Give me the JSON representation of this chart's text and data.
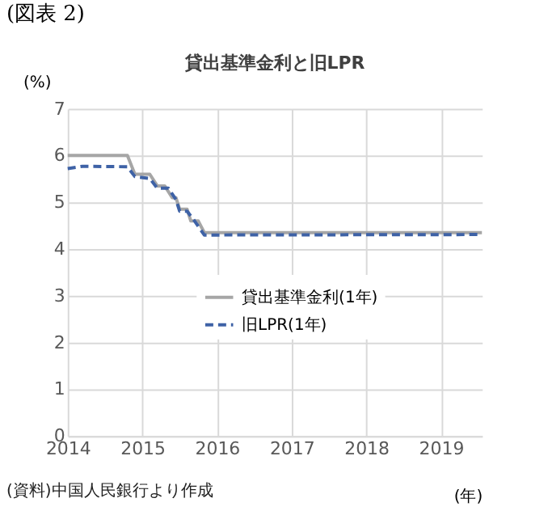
{
  "chart_data": {
    "type": "line",
    "title": "貸出基準金利と旧LPR",
    "subtitle": "(図表 2)",
    "ylabel": "(%)",
    "xlabel": "(年)",
    "annotations": [
      "(資料)中国人民銀行より作成"
    ],
    "xlim": [
      2014,
      2019.55
    ],
    "xticks": [
      2014,
      2015,
      2016,
      2017,
      2018,
      2019
    ],
    "ylim": [
      0,
      7
    ],
    "yticks": [
      0,
      1,
      2,
      3,
      4,
      5,
      6,
      7
    ],
    "grid": true,
    "legend": "bottom right",
    "marker": "none",
    "series": [
      {
        "name": "貸出基準金利(1年)",
        "color": "#a6a6a6",
        "line_style": "solid",
        "x": [
          2014.0,
          2014.8,
          2014.9,
          2015.1,
          2015.2,
          2015.3,
          2015.4,
          2015.45,
          2015.5,
          2015.6,
          2015.65,
          2015.75,
          2015.83,
          2019.55
        ],
        "values": [
          6.0,
          6.0,
          5.6,
          5.6,
          5.35,
          5.35,
          5.1,
          5.1,
          4.85,
          4.85,
          4.6,
          4.6,
          4.35,
          4.35
        ]
      },
      {
        "name": "旧LPR(1年)",
        "color": "#3e62a6",
        "line_style": "dashed",
        "x": [
          2014.0,
          2014.2,
          2014.8,
          2014.9,
          2015.1,
          2015.2,
          2015.35,
          2015.45,
          2015.5,
          2015.6,
          2015.7,
          2015.83,
          2019.55
        ],
        "values": [
          5.72,
          5.77,
          5.76,
          5.55,
          5.51,
          5.3,
          5.3,
          5.06,
          4.81,
          4.81,
          4.6,
          4.3,
          4.31
        ]
      }
    ]
  }
}
